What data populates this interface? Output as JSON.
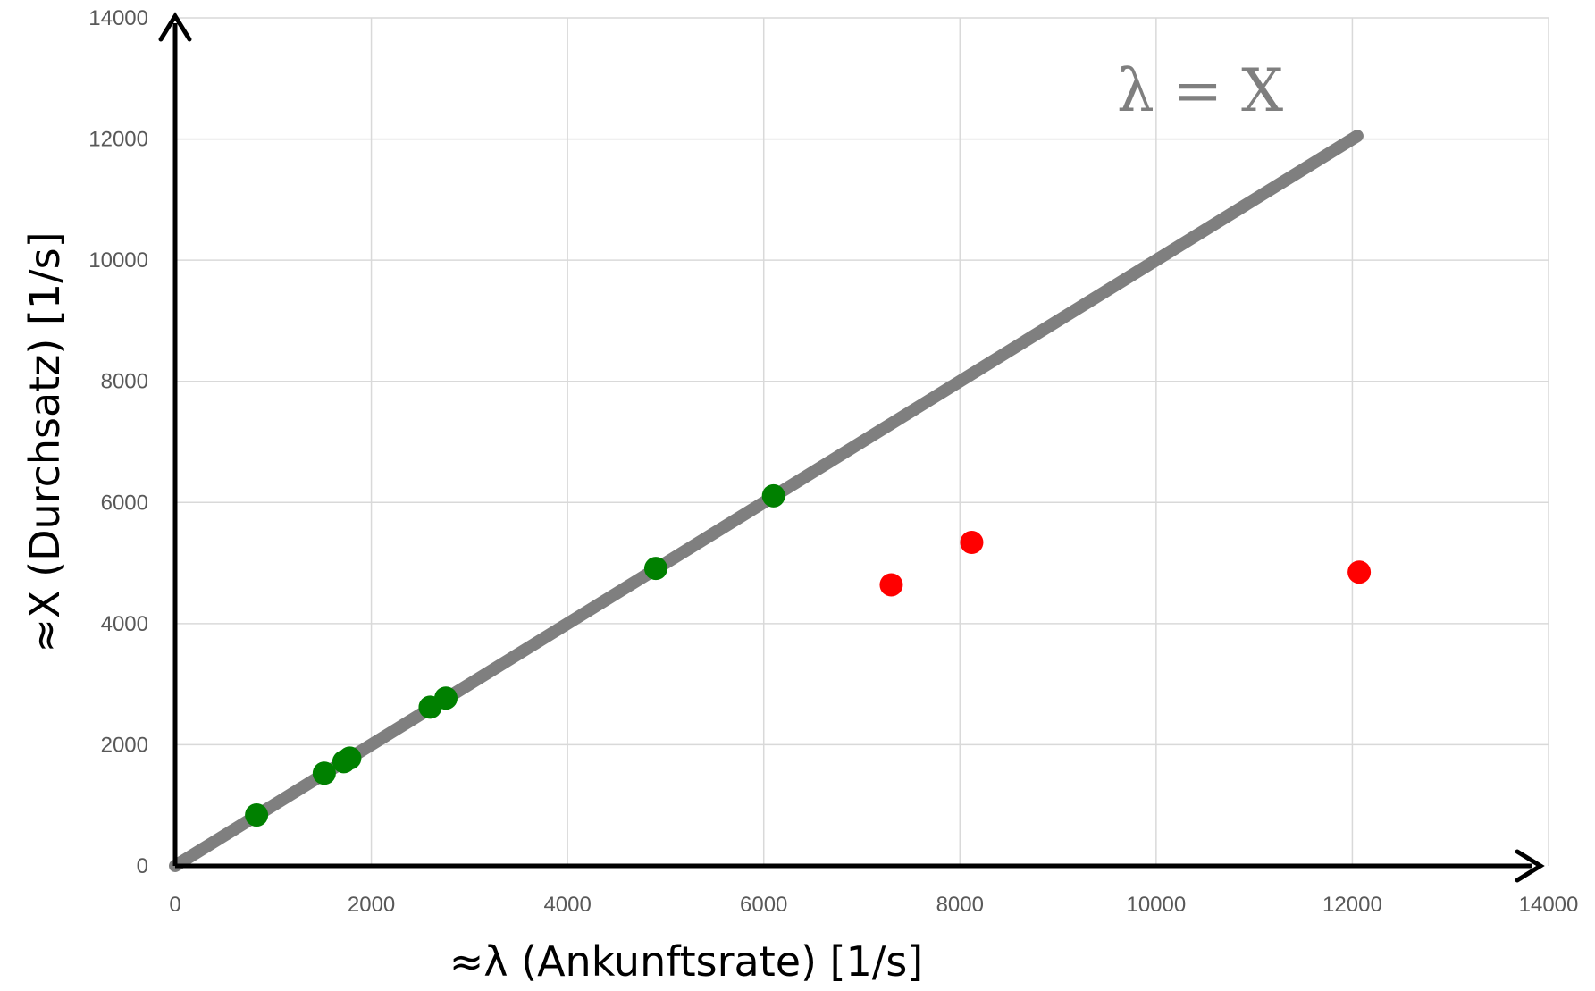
{
  "chart_data": {
    "type": "scatter",
    "xlabel": "≈λ (Ankunftsrate) [1/s]",
    "ylabel": "≈X (Durchsatz) [1/s]",
    "xlim": [
      0,
      14000
    ],
    "ylim": [
      0,
      14000
    ],
    "xticks": [
      0,
      2000,
      4000,
      6000,
      8000,
      10000,
      12000,
      14000
    ],
    "yticks": [
      0,
      2000,
      4000,
      6000,
      8000,
      10000,
      12000,
      14000
    ],
    "grid": true,
    "legend": "none",
    "annotation": "λ = X",
    "reference_line": {
      "x": [
        0,
        12050
      ],
      "y": [
        0,
        12050
      ],
      "color": "#7f7f7f"
    },
    "series": [
      {
        "color": "#008000",
        "points": [
          {
            "x": 830,
            "y": 840
          },
          {
            "x": 1520,
            "y": 1530
          },
          {
            "x": 1720,
            "y": 1720
          },
          {
            "x": 1780,
            "y": 1780
          },
          {
            "x": 2600,
            "y": 2620
          },
          {
            "x": 2760,
            "y": 2770
          },
          {
            "x": 4900,
            "y": 4910
          },
          {
            "x": 6100,
            "y": 6110
          }
        ]
      },
      {
        "color": "#ff0000",
        "points": [
          {
            "x": 7300,
            "y": 4640
          },
          {
            "x": 8120,
            "y": 5340
          },
          {
            "x": 12070,
            "y": 4850
          }
        ]
      }
    ]
  }
}
